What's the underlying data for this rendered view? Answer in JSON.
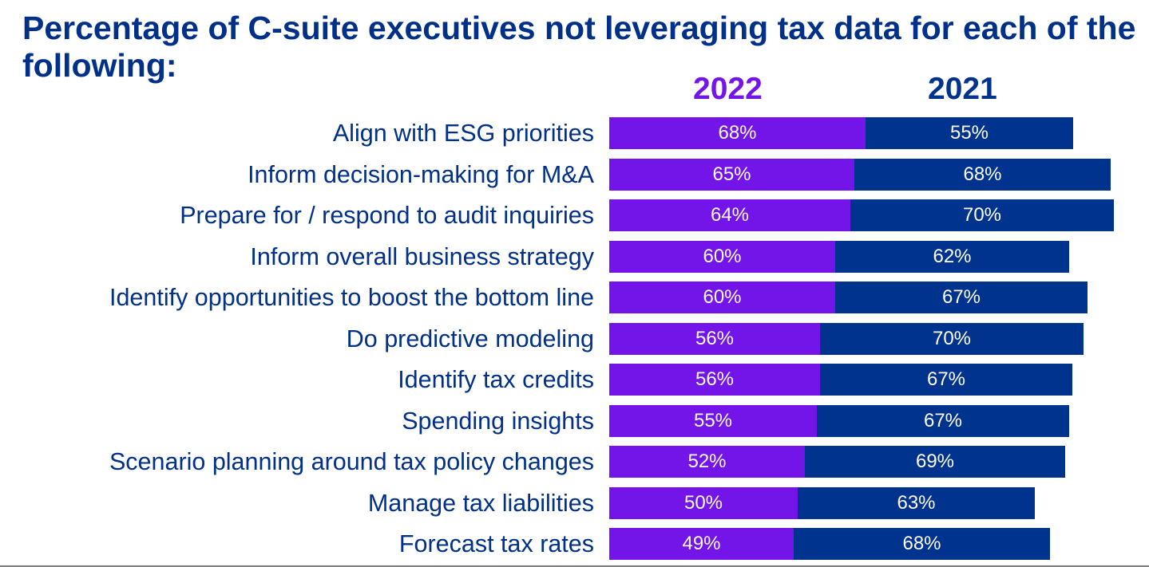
{
  "chart_data": {
    "type": "bar",
    "orientation": "horizontal",
    "stacked": true,
    "title": "Percentage of C-suite executives not leveraging tax data for each of the following:",
    "xlabel": "",
    "ylabel": "",
    "categories": [
      "Align with ESG priorities",
      "Inform decision-making for M&A",
      "Prepare for / respond to audit inquiries",
      "Inform overall business strategy",
      "Identify opportunities to boost the bottom line",
      "Do predictive modeling",
      "Identify tax credits",
      "Spending insights",
      "Scenario planning around tax policy changes",
      "Manage tax liabilities",
      "Forecast tax rates"
    ],
    "series": [
      {
        "name": "2022",
        "color": "#7314E8",
        "values": [
          68,
          65,
          64,
          60,
          60,
          56,
          56,
          55,
          52,
          50,
          49
        ]
      },
      {
        "name": "2021",
        "color": "#00338D",
        "values": [
          55,
          68,
          70,
          62,
          67,
          70,
          67,
          67,
          69,
          63,
          68
        ]
      }
    ],
    "value_suffix": "%",
    "legend": {
      "placement": "top",
      "entries": [
        "2022",
        "2021"
      ]
    },
    "grid": false,
    "xlim": [
      0,
      140
    ]
  },
  "colors": {
    "title": "#003087",
    "label": "#003087",
    "series_2022": "#7314E8",
    "series_2021": "#00338D",
    "bar_text": "#FFFFFF"
  }
}
